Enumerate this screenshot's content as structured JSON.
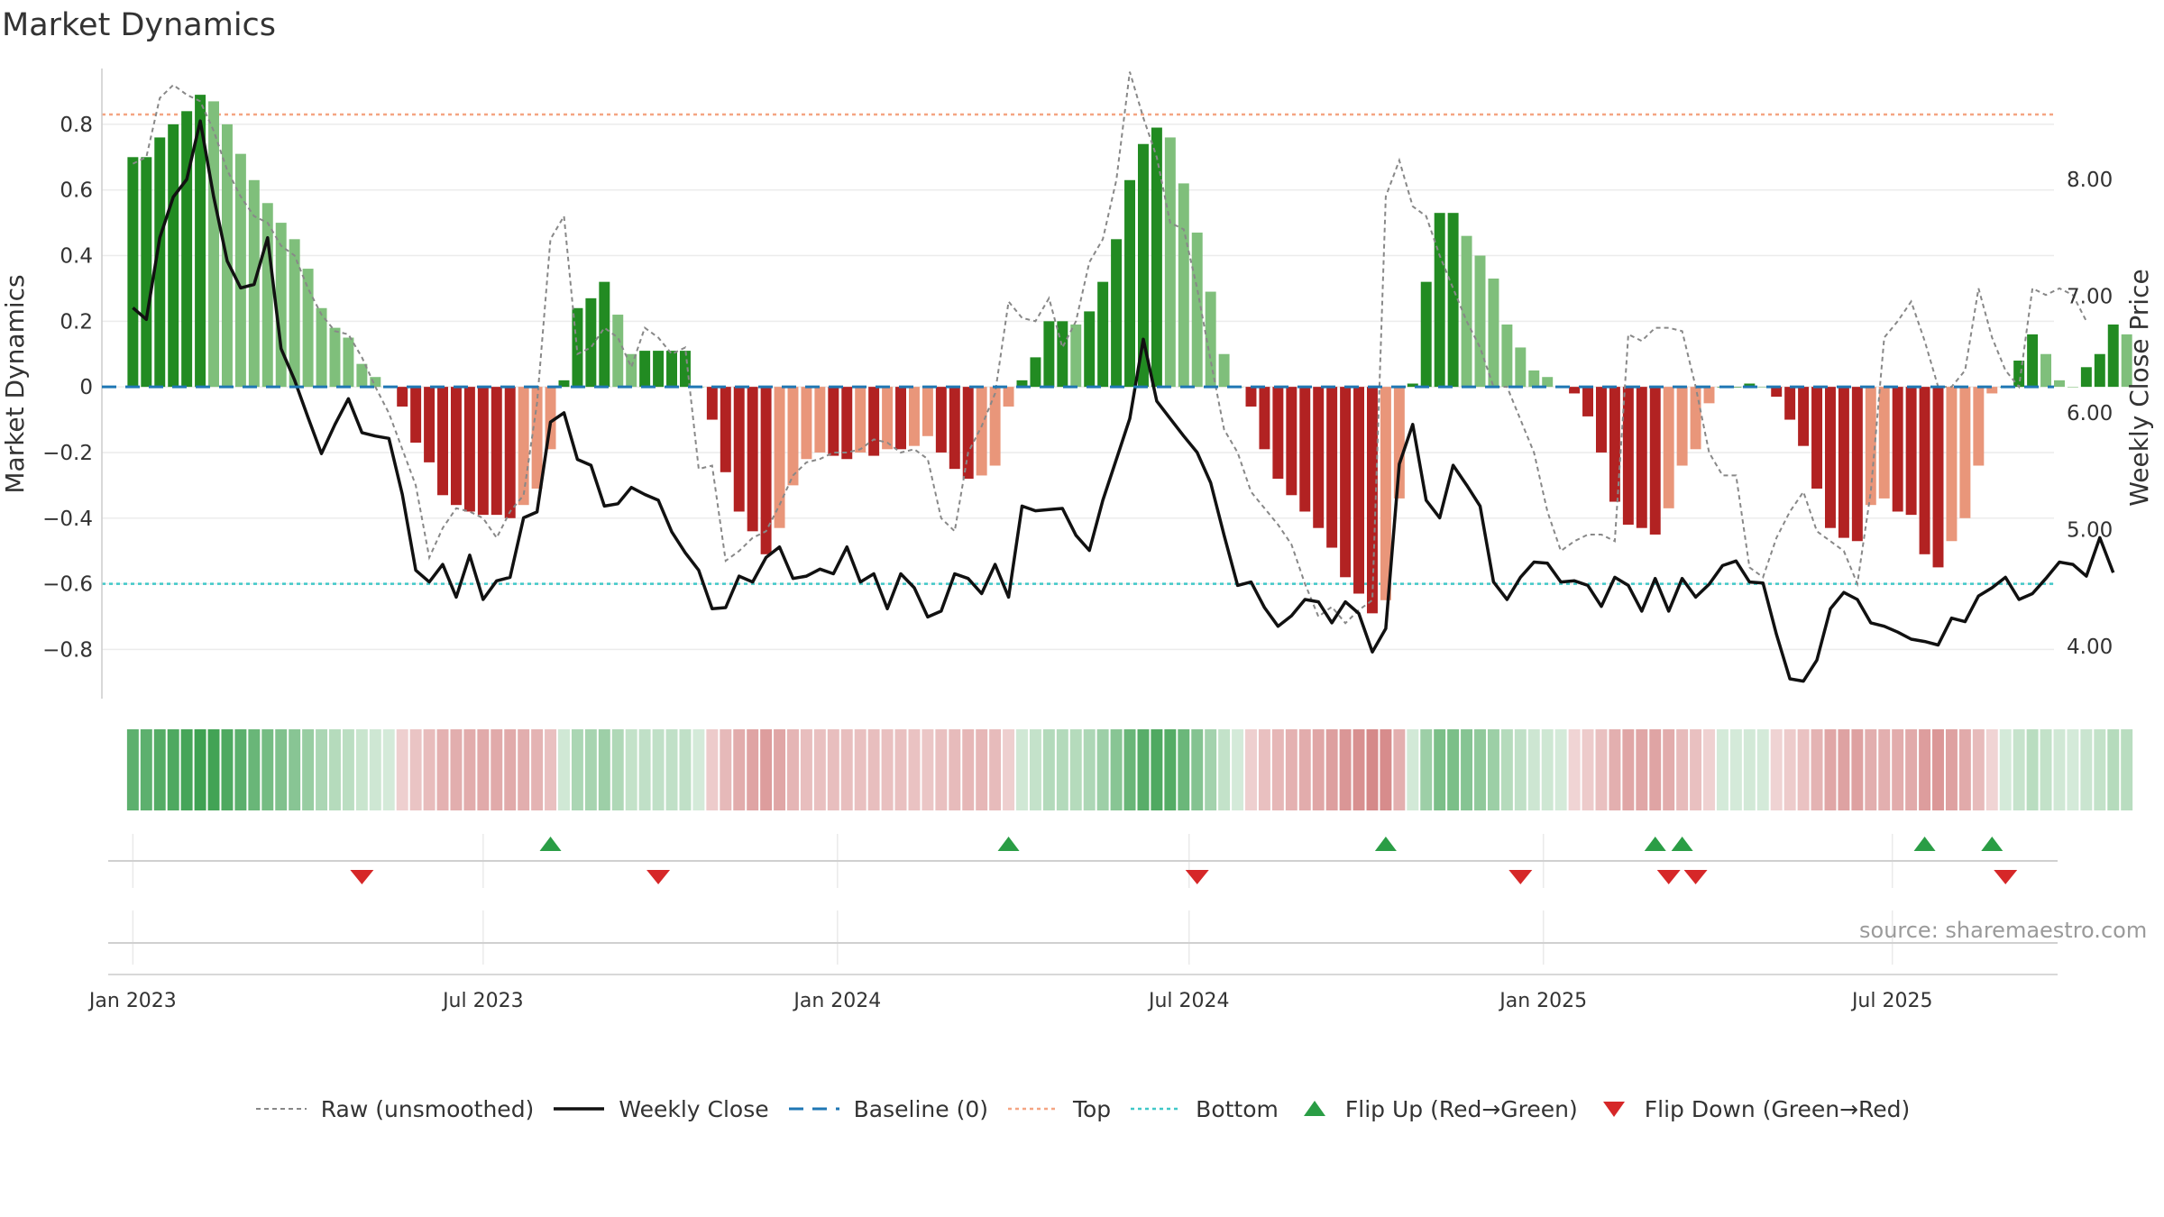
{
  "title": "Market Dynamics",
  "source": "source: sharemaestro.com",
  "colors": {
    "dark_green": "#228b22",
    "light_green": "#7fbf7b",
    "dark_red": "#b22222",
    "light_red": "#e9967a",
    "close": "#111111",
    "raw": "#888888",
    "baseline": "#1f77b4",
    "top": "#f4a582",
    "bottom": "#40c8c8",
    "flip_up": "#2a9d45",
    "flip_down": "#d62728"
  },
  "chart_data": {
    "type": "bar",
    "title": "Market Dynamics",
    "ylabel": "Market Dynamics",
    "y2label": "Weekly Close Price",
    "ylim": [
      -0.95,
      0.97
    ],
    "y2lim": [
      3.55,
      8.95
    ],
    "yticks": [
      0.8,
      0.6,
      0.4,
      0.2,
      0,
      -0.2,
      -0.4,
      -0.6,
      -0.8
    ],
    "yticklabels": [
      "0.8",
      "0.6",
      "0.4",
      "0.2",
      "0",
      "−0.2",
      "−0.4",
      "−0.6",
      "−0.8"
    ],
    "y2ticks": [
      8.0,
      7.0,
      6.0,
      5.0,
      4.0
    ],
    "y2ticklabels": [
      "8.00",
      "7.00",
      "6.00",
      "5.00",
      "4.00"
    ],
    "xlim": [
      -2.3,
      142.6
    ],
    "xticks": [
      {
        "label": "Jan 2023",
        "week": 0
      },
      {
        "label": "Jul 2023",
        "week": 26
      },
      {
        "label": "Jan 2024",
        "week": 52.3
      },
      {
        "label": "Jul 2024",
        "week": 78.4
      },
      {
        "label": "Jan 2025",
        "week": 104.7
      },
      {
        "label": "Jul 2025",
        "week": 130.6
      }
    ],
    "top_line": 0.83,
    "bottom_line": -0.6,
    "baseline": 0,
    "bars": [
      0.7,
      0.7,
      0.76,
      0.8,
      0.84,
      0.89,
      0.87,
      0.8,
      0.71,
      0.63,
      0.56,
      0.5,
      0.45,
      0.36,
      0.24,
      0.18,
      0.15,
      0.07,
      0.03,
      0.0,
      -0.06,
      -0.17,
      -0.23,
      -0.33,
      -0.36,
      -0.38,
      -0.39,
      -0.39,
      -0.4,
      -0.36,
      -0.31,
      -0.19,
      0.02,
      0.24,
      0.27,
      0.32,
      0.22,
      0.1,
      0.11,
      0.11,
      0.11,
      0.11,
      0.0,
      -0.1,
      -0.26,
      -0.38,
      -0.44,
      -0.51,
      -0.43,
      -0.3,
      -0.22,
      -0.2,
      -0.21,
      -0.22,
      -0.2,
      -0.21,
      -0.19,
      -0.19,
      -0.18,
      -0.15,
      -0.2,
      -0.25,
      -0.28,
      -0.27,
      -0.24,
      -0.06,
      0.02,
      0.09,
      0.2,
      0.2,
      0.19,
      0.23,
      0.32,
      0.45,
      0.63,
      0.74,
      0.79,
      0.76,
      0.62,
      0.47,
      0.29,
      0.1,
      0.0,
      -0.06,
      -0.19,
      -0.28,
      -0.33,
      -0.38,
      -0.43,
      -0.49,
      -0.58,
      -0.63,
      -0.69,
      -0.65,
      -0.34,
      0.01,
      0.32,
      0.53,
      0.53,
      0.46,
      0.4,
      0.33,
      0.19,
      0.12,
      0.05,
      0.03,
      0.0,
      -0.02,
      -0.09,
      -0.2,
      -0.35,
      -0.42,
      -0.43,
      -0.45,
      -0.37,
      -0.24,
      -0.19,
      -0.05,
      0.0,
      0.0,
      0.01,
      0.0,
      -0.03,
      -0.1,
      -0.18,
      -0.31,
      -0.43,
      -0.46,
      -0.47,
      -0.36,
      -0.34,
      -0.38,
      -0.39,
      -0.51,
      -0.55,
      -0.47,
      -0.4,
      -0.24,
      -0.02,
      0.0,
      0.08,
      0.16,
      0.1,
      0.02,
      0.0,
      0.06,
      0.1,
      0.19,
      0.16
    ],
    "weekly_close": [
      6.9,
      6.8,
      7.5,
      7.85,
      8.0,
      8.5,
      7.85,
      7.3,
      7.07,
      7.1,
      7.5,
      6.55,
      6.28,
      5.96,
      5.65,
      5.9,
      6.12,
      5.83,
      5.8,
      5.78,
      5.3,
      4.65,
      4.55,
      4.7,
      4.42,
      4.78,
      4.4,
      4.56,
      4.59,
      5.1,
      5.15,
      5.92,
      6.0,
      5.6,
      5.55,
      5.2,
      5.22,
      5.36,
      5.3,
      5.25,
      4.98,
      4.8,
      4.65,
      4.32,
      4.33,
      4.6,
      4.55,
      4.76,
      4.85,
      4.58,
      4.6,
      4.66,
      4.62,
      4.85,
      4.55,
      4.62,
      4.32,
      4.62,
      4.5,
      4.25,
      4.3,
      4.62,
      4.58,
      4.45,
      4.7,
      4.42,
      5.2,
      5.16,
      5.17,
      5.18,
      4.95,
      4.82,
      5.25,
      5.6,
      5.95,
      6.63,
      6.1,
      5.95,
      5.8,
      5.66,
      5.4,
      4.95,
      4.52,
      4.55,
      4.33,
      4.17,
      4.26,
      4.4,
      4.38,
      4.2,
      4.38,
      4.28,
      3.95,
      4.15,
      5.56,
      5.9,
      5.25,
      5.1,
      5.55,
      5.38,
      5.2,
      4.55,
      4.4,
      4.59,
      4.72,
      4.71,
      4.55,
      4.56,
      4.52,
      4.34,
      4.59,
      4.52,
      4.3,
      4.58,
      4.3,
      4.58,
      4.42,
      4.53,
      4.69,
      4.73,
      4.55,
      4.54,
      4.1,
      3.72,
      3.7,
      3.88,
      4.32,
      4.46,
      4.4,
      4.2,
      4.17,
      4.12,
      4.06,
      4.04,
      4.01,
      4.24,
      4.21,
      4.43,
      4.5,
      4.59,
      4.4,
      4.45,
      4.58,
      4.72,
      4.7,
      4.6,
      4.93,
      4.63
    ],
    "raw": [
      0.68,
      0.7,
      0.88,
      0.92,
      0.89,
      0.87,
      0.78,
      0.66,
      0.58,
      0.52,
      0.5,
      0.43,
      0.4,
      0.3,
      0.22,
      0.17,
      0.16,
      0.09,
      0.0,
      -0.08,
      -0.19,
      -0.3,
      -0.52,
      -0.43,
      -0.37,
      -0.38,
      -0.4,
      -0.46,
      -0.38,
      -0.33,
      -0.05,
      0.45,
      0.52,
      0.1,
      0.12,
      0.18,
      0.15,
      0.06,
      0.18,
      0.15,
      0.1,
      0.12,
      -0.25,
      -0.24,
      -0.53,
      -0.5,
      -0.46,
      -0.44,
      -0.36,
      -0.27,
      -0.23,
      -0.22,
      -0.2,
      -0.2,
      -0.19,
      -0.16,
      -0.17,
      -0.2,
      -0.19,
      -0.22,
      -0.4,
      -0.44,
      -0.2,
      -0.12,
      -0.02,
      0.26,
      0.21,
      0.2,
      0.27,
      0.12,
      0.2,
      0.38,
      0.45,
      0.63,
      0.96,
      0.82,
      0.7,
      0.5,
      0.48,
      0.3,
      0.08,
      -0.13,
      -0.2,
      -0.32,
      -0.37,
      -0.42,
      -0.48,
      -0.6,
      -0.7,
      -0.67,
      -0.72,
      -0.68,
      -0.65,
      0.58,
      0.69,
      0.55,
      0.52,
      0.4,
      0.3,
      0.2,
      0.12,
      0.0,
      0.0,
      -0.1,
      -0.2,
      -0.38,
      -0.5,
      -0.47,
      -0.45,
      -0.45,
      -0.47,
      0.16,
      0.14,
      0.18,
      0.18,
      0.17,
      0.0,
      -0.2,
      -0.27,
      -0.27,
      -0.55,
      -0.58,
      -0.46,
      -0.38,
      -0.32,
      -0.44,
      -0.47,
      -0.5,
      -0.6,
      -0.32,
      0.15,
      0.2,
      0.26,
      0.14,
      0.0,
      0.0,
      0.05,
      0.3,
      0.15,
      0.05,
      0.0,
      0.3,
      0.28,
      0.3,
      0.28,
      0.2
    ],
    "flip_up_weeks": [
      31,
      65,
      93,
      113,
      115,
      133,
      138
    ],
    "flip_down_weeks": [
      17,
      39,
      79,
      103,
      114,
      116,
      139
    ],
    "legend": {
      "raw": "Raw (unsmoothed)",
      "close": "Weekly Close",
      "baseline": "Baseline (0)",
      "top": "Top",
      "bottom": "Bottom",
      "flip_up": "Flip Up (Red→Green)",
      "flip_down": "Flip Down (Green→Red)"
    }
  }
}
